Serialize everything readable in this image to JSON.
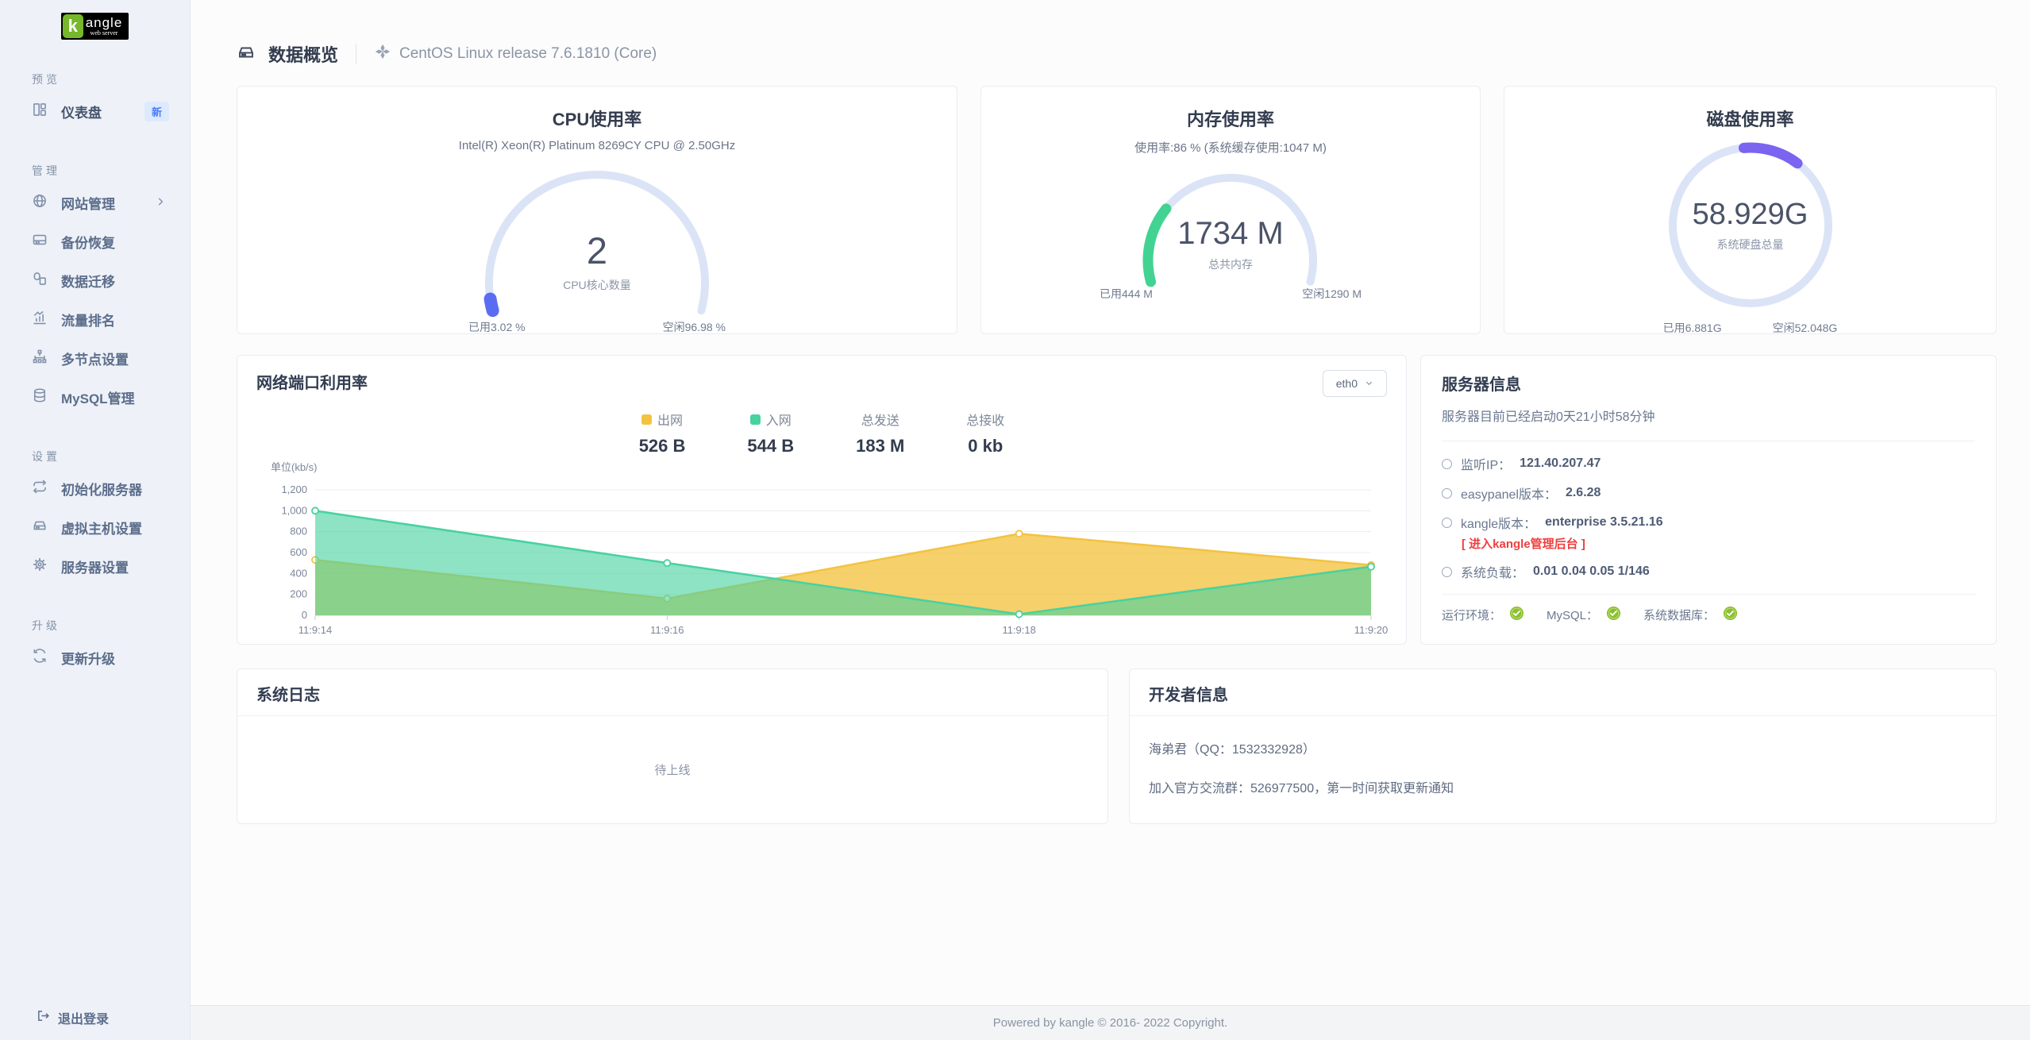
{
  "brand": {
    "k": "k",
    "name": "angle",
    "tagline": "web server"
  },
  "sidebar": {
    "sections": [
      {
        "label": "预览",
        "items": [
          {
            "label": "仪表盘",
            "icon": "dashboard-icon",
            "badge": "新"
          }
        ]
      },
      {
        "label": "管理",
        "items": [
          {
            "label": "网站管理",
            "icon": "globe-icon",
            "chevron": true
          },
          {
            "label": "备份恢复",
            "icon": "backup-drive-icon"
          },
          {
            "label": "数据迁移",
            "icon": "data-migrate-icon"
          },
          {
            "label": "流量排名",
            "icon": "traffic-chart-icon"
          },
          {
            "label": "多节点设置",
            "icon": "nodes-icon"
          },
          {
            "label": "MySQL管理",
            "icon": "database-icon"
          }
        ]
      },
      {
        "label": "设置",
        "items": [
          {
            "label": "初始化服务器",
            "icon": "reset-loop-icon"
          },
          {
            "label": "虚拟主机设置",
            "icon": "vhost-drive-icon"
          },
          {
            "label": "服务器设置",
            "icon": "gear-icon"
          }
        ]
      },
      {
        "label": "升级",
        "items": [
          {
            "label": "更新升级",
            "icon": "update-icon"
          }
        ]
      }
    ],
    "logout": "退出登录"
  },
  "header": {
    "title": "数据概览",
    "os": "CentOS Linux release 7.6.1810 (Core)"
  },
  "cards": {
    "cpu": {
      "title": "CPU使用率",
      "subtitle": "Intel(R) Xeon(R) Platinum 8269CY CPU @ 2.50GHz",
      "center_value": "2",
      "center_label": "CPU核心数量",
      "left_label": "已用3.02 %",
      "right_label": "空闲96.98 %",
      "percent": 3.02,
      "color": "#5a6df2",
      "track_color": "#dbe4f6"
    },
    "memory": {
      "title": "内存使用率",
      "subtitle": "使用率:86 % (系统缓存使用:1047 M)",
      "center_value": "1734 M",
      "center_label": "总共内存",
      "left_label": "已用444 M",
      "right_label": "空闲1290 M",
      "percent": 25.6,
      "color": "#42d392",
      "track_color": "#dbe4f6"
    },
    "disk": {
      "title": "磁盘使用率",
      "center_value": "58.929G",
      "center_label": "系统硬盘总量",
      "left_label": "已用6.881G",
      "right_label": "空闲52.048G",
      "percent": 11.68,
      "color": "#7a64f0",
      "track_color": "#dbe4f6"
    }
  },
  "network": {
    "title": "网络端口利用率",
    "interface": "eth0",
    "stats": [
      {
        "label": "出网",
        "value": "526 B",
        "swatch": "#f3c340"
      },
      {
        "label": "入网",
        "value": "544 B",
        "swatch": "#47d2a0"
      },
      {
        "label": "总发送",
        "value": "183 M"
      },
      {
        "label": "总接收",
        "value": "0 kb"
      }
    ]
  },
  "chart_data": {
    "type": "area",
    "title": "网络端口利用率",
    "ylabel": "单位(kb/s)",
    "x": [
      "11:9:14",
      "11:9:16",
      "11:9:18",
      "11:9:20"
    ],
    "yticks": [
      "1,200",
      "1,000",
      "800",
      "600",
      "400",
      "200",
      "0"
    ],
    "ylim": [
      0,
      1200
    ],
    "series": [
      {
        "name": "出网",
        "color": "#f3c340",
        "values": [
          530,
          160,
          780,
          480
        ]
      },
      {
        "name": "入网",
        "color": "#47d2a0",
        "values": [
          1000,
          500,
          10,
          465
        ]
      }
    ],
    "grid": true,
    "legend_position": "top"
  },
  "server_info": {
    "title": "服务器信息",
    "uptime": "服务器目前已经启动0天21小时58分钟",
    "items": [
      {
        "label": "监听IP：",
        "value": "121.40.207.47"
      },
      {
        "label": "easypanel版本：",
        "value": "2.6.28"
      },
      {
        "label": "kangle版本：",
        "value": "enterprise 3.5.21.16",
        "link": "[ 进入kangle管理后台 ]"
      },
      {
        "label": "系统负载：",
        "value": "0.01 0.04 0.05 1/146"
      }
    ],
    "env": [
      {
        "label": "运行环境："
      },
      {
        "label": "MySQL："
      },
      {
        "label": "系统数据库："
      }
    ],
    "ok_color": "#8bc02c"
  },
  "syslog": {
    "title": "系统日志",
    "empty": "待上线"
  },
  "developer": {
    "title": "开发者信息",
    "line1": "海弟君（QQ：1532332928）",
    "line2": "加入官方交流群：526977500，第一时间获取更新通知"
  },
  "footer": {
    "text": "Powered by kangle © 2016- 2022 Copyright."
  }
}
